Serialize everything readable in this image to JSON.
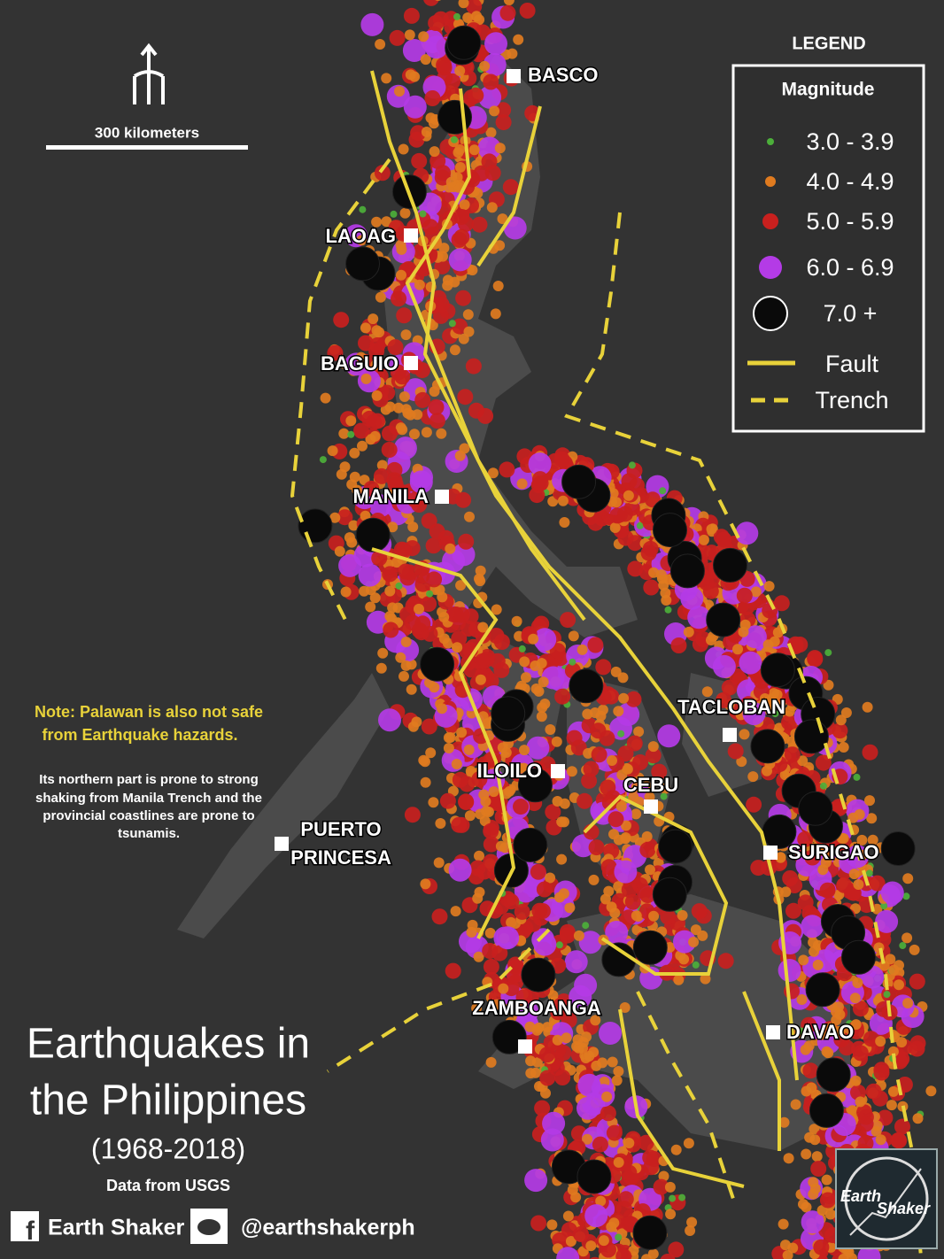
{
  "map": {
    "title_line1": "Earthquakes in",
    "title_line2": "the Philippines",
    "period": "(1968-2018)",
    "source": "Data from USGS",
    "scale_label": "300 kilometers",
    "legend": {
      "heading": "LEGEND",
      "subheading": "Magnitude",
      "classes": [
        {
          "label": "3.0 - 3.9",
          "color": "#4caf3a"
        },
        {
          "label": "4.0 - 4.9",
          "color": "#e07b1f"
        },
        {
          "label": "5.0 - 5.9",
          "color": "#c8201e"
        },
        {
          "label": "6.0 - 6.9",
          "color": "#b43be6"
        },
        {
          "label": "7.0 +",
          "color": "#0a0a0a"
        }
      ],
      "fault": "Fault",
      "trench": "Trench",
      "fault_color": "#e8d23a"
    },
    "cities": [
      {
        "name": "BASCO"
      },
      {
        "name": "LAOAG"
      },
      {
        "name": "BAGUIO"
      },
      {
        "name": "MANILA"
      },
      {
        "name": "TACLOBAN"
      },
      {
        "name": "ILOILO"
      },
      {
        "name": "CEBU"
      },
      {
        "name": "PUERTO"
      },
      {
        "name": "PRINCESA"
      },
      {
        "name": "SURIGAO"
      },
      {
        "name": "ZAMBOANGA"
      },
      {
        "name": "DAVAO"
      }
    ],
    "note_line1": "Note: Palawan is also not safe",
    "note_line2": "from Earthquake hazards.",
    "detail": [
      "Its northern part is  prone to strong",
      "shaking from Manila Trench and the",
      "provincial coastlines are prone to",
      "tsunamis."
    ],
    "footer": {
      "facebook": "Earth Shaker",
      "twitter": "@earthshakerph",
      "logo_line1": "Earth",
      "logo_line2": "Shaker"
    }
  }
}
